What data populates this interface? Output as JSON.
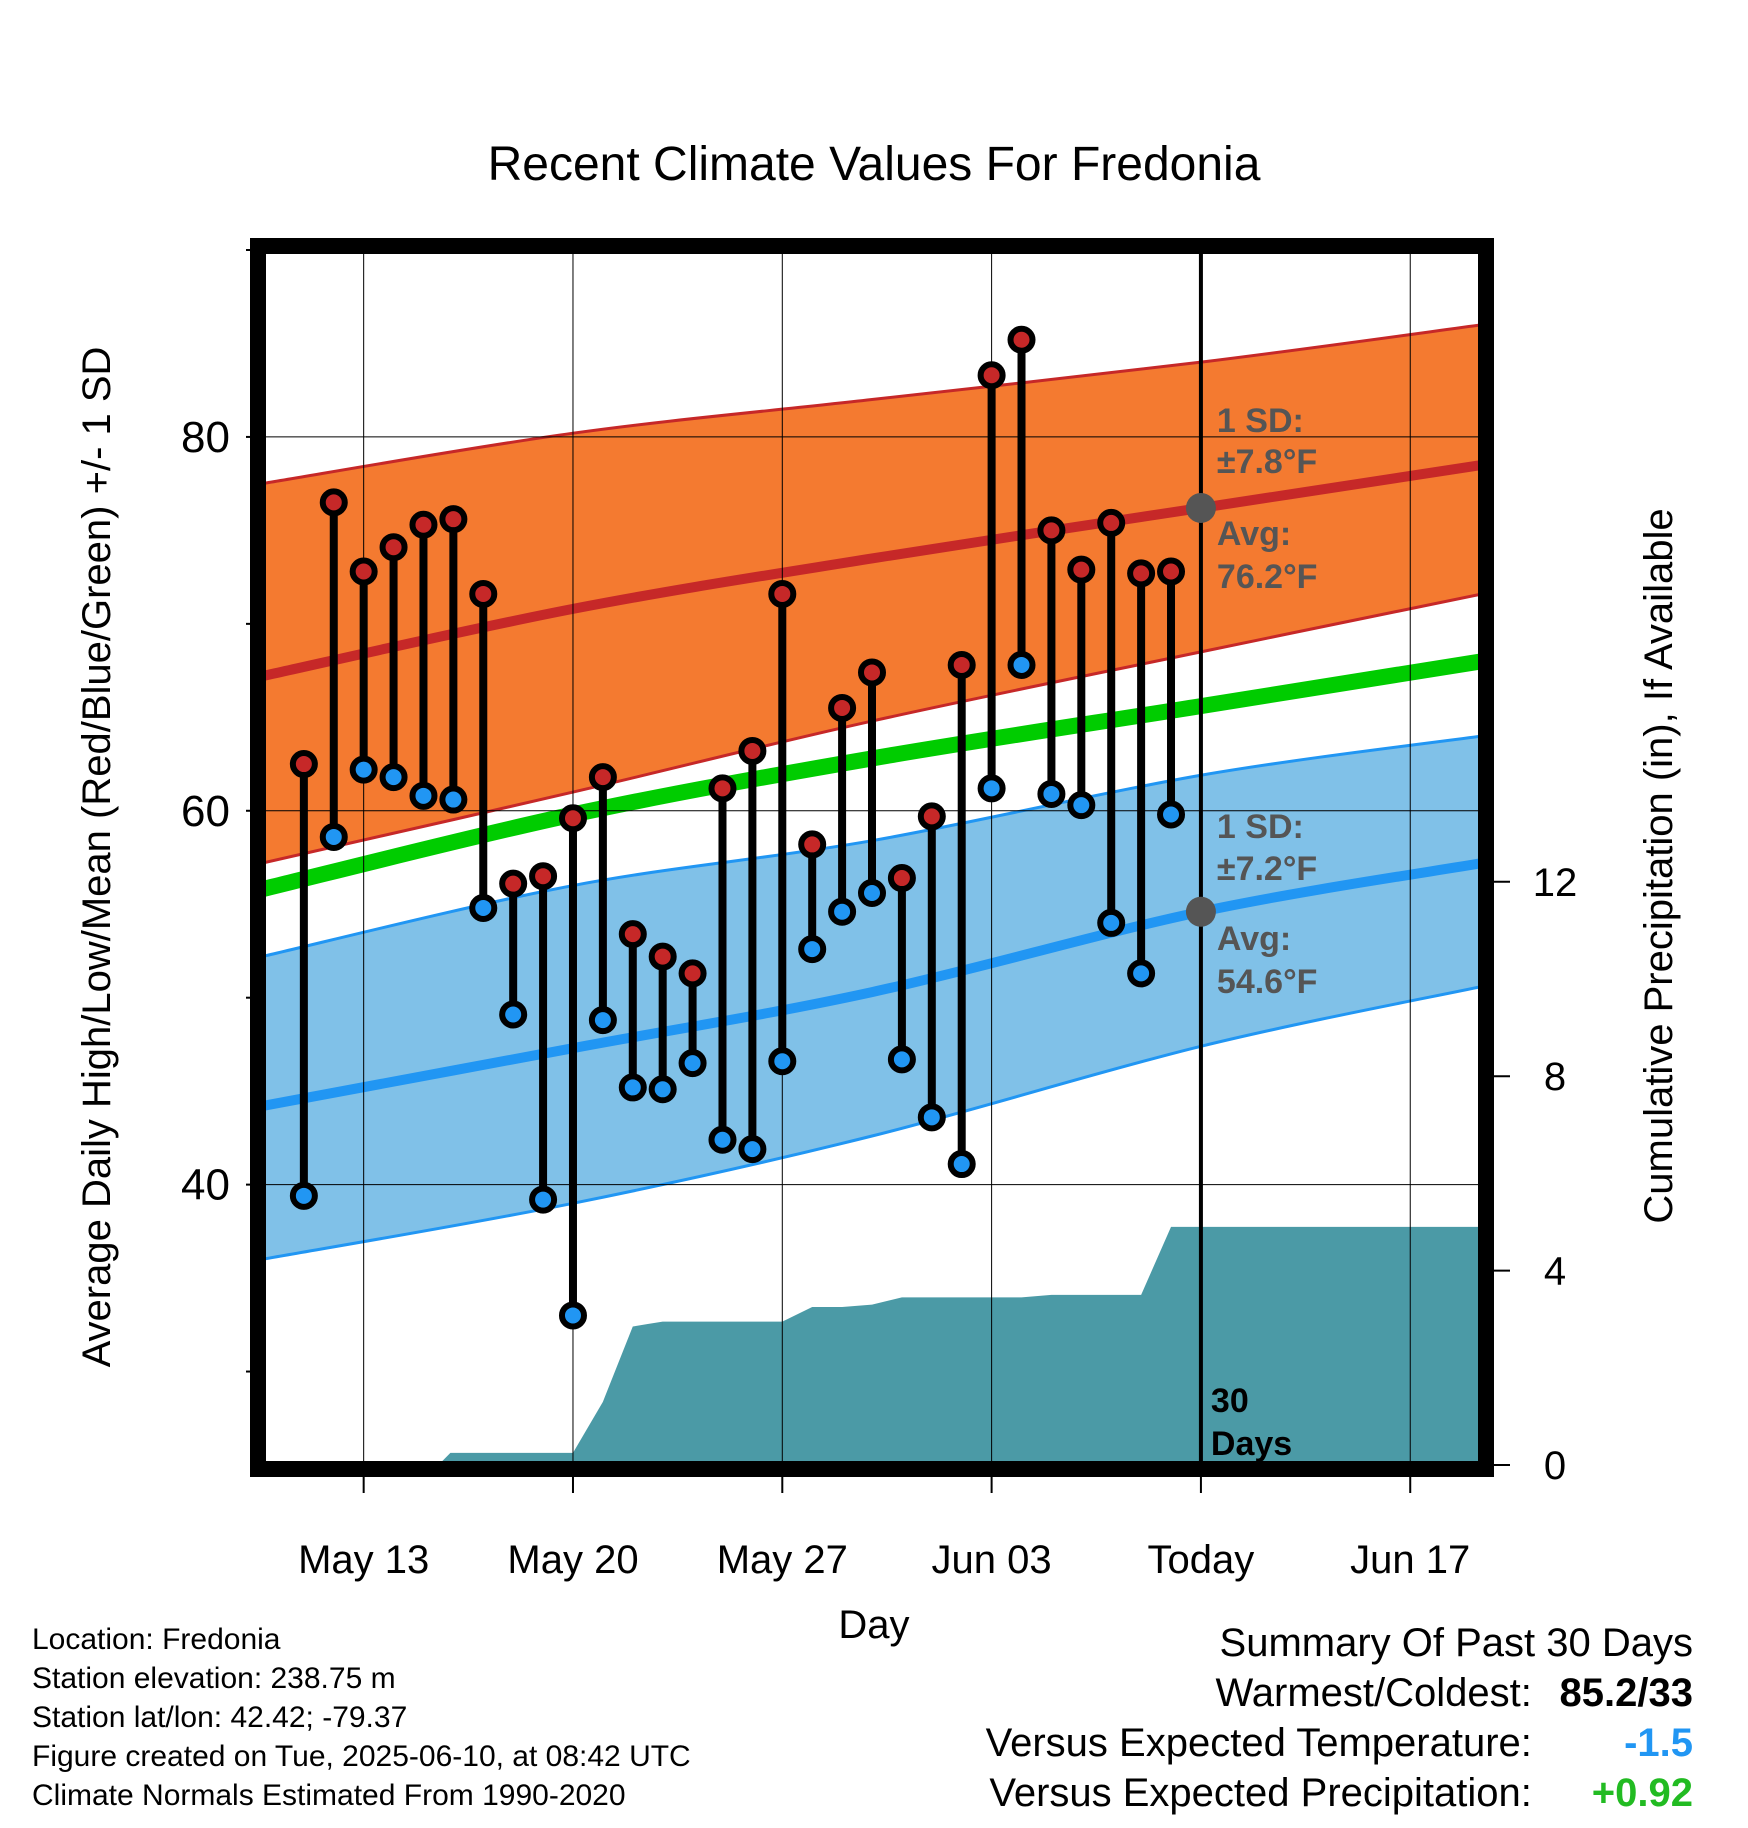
{
  "chart_data": {
    "type": "line",
    "title": "Recent Climate Values For Fredonia",
    "xlabel": "Day",
    "ylabel": "Average Daily High/Low/Mean (Red/Blue/Green) +/- 1 SD",
    "ylabel_right": "Cumulative Precipitation (in), If Available",
    "ylim": [
      25,
      90
    ],
    "ylim_right": [
      0,
      25
    ],
    "xlim": [
      9.6,
      50.4
    ],
    "y_ticks": [
      40,
      60,
      80
    ],
    "y_ticks_right": [
      0,
      4,
      8,
      12
    ],
    "x_ticks": [
      {
        "x": 13,
        "label": "May 13"
      },
      {
        "x": 20,
        "label": "May 20"
      },
      {
        "x": 27,
        "label": "May 27"
      },
      {
        "x": 34,
        "label": "Jun 03"
      },
      {
        "x": 41,
        "label": "Today"
      },
      {
        "x": 48,
        "label": "Jun 17"
      }
    ],
    "today_x": 41,
    "today_label": "30 Days",
    "normals": {
      "x": [
        9.6,
        20,
        30,
        41,
        50.4
      ],
      "high_avg": [
        67.2,
        70.8,
        73.5,
        76.2,
        78.5
      ],
      "high_upper": [
        77.5,
        80.2,
        82.0,
        84.0,
        86.0
      ],
      "high_lower": [
        57.2,
        61.0,
        64.8,
        68.5,
        71.6
      ],
      "mean_avg": [
        55.8,
        59.8,
        62.8,
        65.6,
        68.0
      ],
      "low_avg": [
        44.2,
        47.3,
        50.3,
        54.6,
        57.2
      ],
      "low_upper": [
        52.2,
        56.0,
        58.4,
        61.9,
        64.0
      ],
      "low_lower": [
        36.0,
        39.0,
        42.6,
        47.4,
        50.6
      ]
    },
    "annotations": {
      "high_sd": {
        "line1": "1 SD:",
        "line2": "±7.8°F"
      },
      "high_avg": {
        "line1": "Avg:",
        "line2": "76.2°F",
        "value": 76.2
      },
      "low_sd": {
        "line1": "1 SD:",
        "line2": "±7.2°F"
      },
      "low_avg": {
        "line1": "Avg:",
        "line2": "54.6°F",
        "value": 54.6
      }
    },
    "series": [
      {
        "name": "High",
        "x": [
          11,
          12,
          13,
          14,
          15,
          16,
          17,
          18,
          19,
          20,
          21,
          22,
          23,
          24,
          25,
          26,
          27,
          28,
          29,
          30,
          31,
          32,
          33,
          34,
          35,
          36,
          37,
          38,
          39,
          40
        ],
        "values": [
          62.5,
          76.5,
          72.8,
          74.1,
          75.3,
          75.6,
          71.6,
          56.1,
          56.5,
          59.6,
          61.8,
          53.4,
          52.2,
          51.3,
          61.2,
          63.2,
          71.6,
          58.2,
          65.5,
          67.4,
          56.4,
          59.7,
          67.8,
          83.3,
          85.2,
          75.0,
          72.9,
          75.4,
          72.7,
          72.8
        ]
      },
      {
        "name": "Low",
        "x": [
          11,
          12,
          13,
          14,
          15,
          16,
          17,
          18,
          19,
          20,
          21,
          22,
          23,
          24,
          25,
          26,
          27,
          28,
          29,
          30,
          31,
          32,
          33,
          34,
          35,
          36,
          37,
          38,
          39,
          40
        ],
        "values": [
          39.4,
          58.6,
          62.2,
          61.8,
          60.8,
          60.6,
          54.8,
          49.1,
          39.2,
          33.0,
          48.8,
          45.2,
          45.1,
          46.5,
          42.4,
          41.9,
          46.6,
          52.6,
          54.6,
          55.6,
          46.7,
          43.6,
          41.1,
          61.2,
          67.8,
          60.9,
          60.3,
          54.0,
          51.3,
          59.8
        ]
      },
      {
        "name": "Precipitation",
        "x": [
          9.6,
          15.5,
          15.9,
          20.0,
          21.0,
          22.0,
          22.5,
          23.0,
          27.0,
          28.0,
          29.0,
          30.0,
          31.0,
          32.0,
          35.0,
          36.0,
          38.0,
          39.0,
          40.0,
          41.0,
          50.4
        ],
        "values": [
          0,
          0,
          0.25,
          0.25,
          1.3,
          2.85,
          2.9,
          2.95,
          2.95,
          3.25,
          3.25,
          3.3,
          3.45,
          3.45,
          3.45,
          3.5,
          3.5,
          3.5,
          4.9,
          4.9,
          4.9
        ]
      }
    ],
    "colors": {
      "high": "#c62828",
      "low": "#2196f3",
      "mean": "#00cc00",
      "high_band": "#f47a30",
      "low_band": "#80c1e8",
      "precip": "#4b9aa6",
      "annotation": "#555555"
    }
  },
  "info": {
    "location": "Location: Fredonia",
    "elevation": "Station elevation: 238.75 m",
    "latlon": "Station lat/lon: 42.42; -79.37",
    "created": "Figure created on Tue, 2025-06-10, at 08:42 UTC",
    "normals": "Climate Normals Estimated From 1990-2020"
  },
  "summary": {
    "title": "Summary Of Past 30 Days",
    "warmest_label": "Warmest/Coldest:",
    "warmest_value": "85.2/33",
    "temp_label": "Versus Expected Temperature:",
    "temp_value": "-1.5",
    "temp_color": "#2196f3",
    "precip_label": "Versus Expected Precipitation:",
    "precip_value": "+0.92",
    "precip_color": "#22bb22"
  }
}
